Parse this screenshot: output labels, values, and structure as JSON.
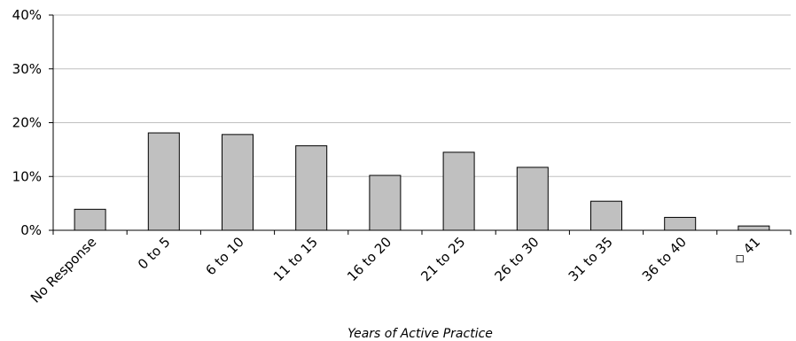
{
  "chart_data": {
    "type": "bar",
    "title": "",
    "xlabel": "Years of Active Practice",
    "ylabel": "",
    "categories": [
      "No Response",
      "0 to 5",
      "6 to 10",
      "11 to 15",
      "16 to 20",
      "21 to 25",
      "26 to 30",
      "31 to 35",
      "36 to 40",
      "◇ 41"
    ],
    "values": [
      3.9,
      18.1,
      17.8,
      15.7,
      10.2,
      14.5,
      11.7,
      5.4,
      2.4,
      0.8
    ],
    "unit": "%",
    "ylim": [
      0,
      40
    ],
    "yticks": [
      "0%",
      "10%",
      "20%",
      "30%",
      "40%"
    ],
    "grid": true,
    "legend": "none",
    "colors": {
      "bar_fill": "#c0c0c0",
      "bar_stroke": "#000000",
      "grid": "#c0c0c0",
      "axis": "#000000"
    }
  }
}
